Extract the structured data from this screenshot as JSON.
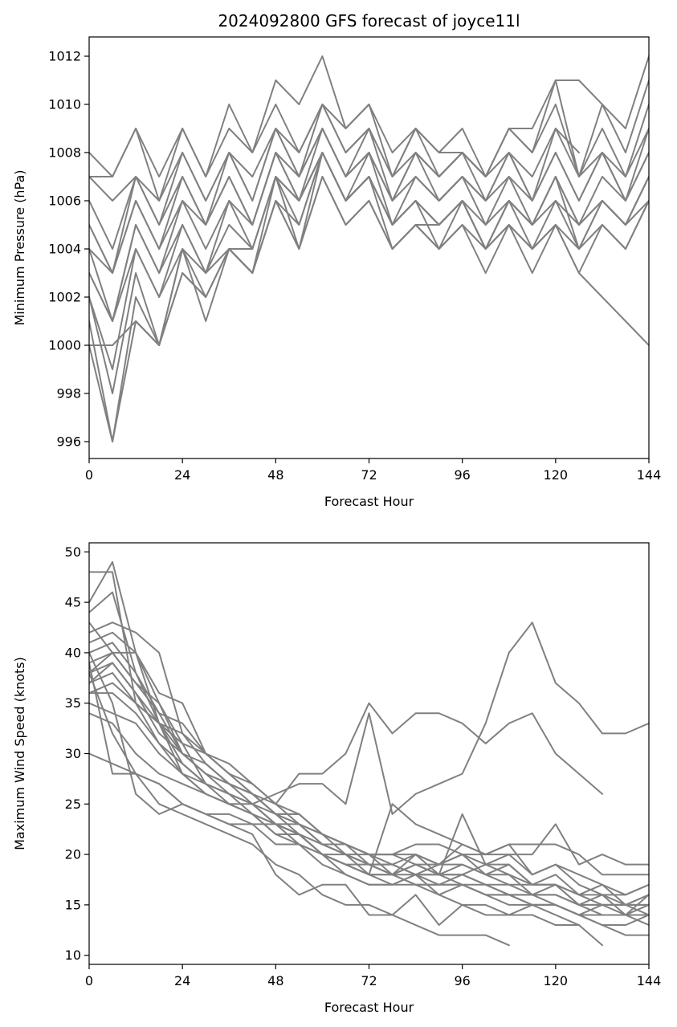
{
  "figure_title": "2024092800 GFS forecast of joyce11l",
  "line_color": "#808080",
  "chart_data": [
    {
      "type": "line",
      "title": "2024092800 GFS forecast of joyce11l",
      "xlabel": "Forecast Hour",
      "ylabel": "Minimum Pressure (hPa)",
      "xlim": [
        0,
        144
      ],
      "ylim": [
        995.3,
        1012.8
      ],
      "xticks": [
        0,
        24,
        48,
        72,
        96,
        120,
        144
      ],
      "yticks": [
        996,
        998,
        1000,
        1002,
        1004,
        1006,
        1008,
        1010,
        1012
      ],
      "grid": false,
      "x": [
        0,
        6,
        12,
        18,
        24,
        30,
        36,
        42,
        48,
        54,
        60,
        66,
        72,
        78,
        84,
        90,
        96,
        102,
        108,
        114,
        120,
        126,
        132,
        138,
        144
      ],
      "series": [
        {
          "values": [
            1008,
            1007,
            1009,
            1007,
            1009,
            1007,
            1010,
            1008,
            1011,
            1010,
            1012,
            1009,
            1010,
            1008,
            1009,
            1008,
            1008,
            1007,
            1009,
            1008,
            1011,
            1011,
            1010,
            1009,
            1012
          ]
        },
        {
          "values": [
            1007,
            1007,
            1009,
            1006,
            1009,
            1007,
            1009,
            1008,
            1010,
            1008,
            1010,
            1009,
            1010,
            1007,
            1009,
            1008,
            1009,
            1007,
            1009,
            1009,
            1011,
            1007,
            1010,
            1008,
            1011
          ]
        },
        {
          "values": [
            1007,
            1006,
            1007,
            1006,
            1008,
            1006,
            1008,
            1007,
            1009,
            1008,
            1010,
            1008,
            1009,
            1007,
            1009,
            1007,
            1008,
            1007,
            1009,
            1008,
            1010,
            1007,
            1009,
            1007,
            1010
          ]
        },
        {
          "values": [
            1006,
            1004,
            1007,
            1005,
            1008,
            1006,
            1008,
            1006,
            1009,
            1007,
            1010,
            1008,
            1009,
            1007,
            1008,
            1007,
            1008,
            1007,
            1008,
            1007,
            1009,
            1008,
            null,
            null,
            null
          ]
        },
        {
          "values": [
            1005,
            1003,
            1007,
            1005,
            1007,
            1005,
            1008,
            1006,
            1009,
            1007,
            1009,
            1007,
            1009,
            1006,
            1008,
            1007,
            1008,
            1006,
            1008,
            1006,
            1009,
            1007,
            1008,
            1007,
            1009
          ]
        },
        {
          "values": [
            1005,
            1003,
            1006,
            1004,
            1007,
            1005,
            1007,
            1005,
            1008,
            1007,
            1009,
            1007,
            1008,
            1006,
            1008,
            1006,
            1007,
            1006,
            1008,
            1006,
            1008,
            1006,
            1008,
            1006,
            1009
          ]
        },
        {
          "values": [
            1004,
            1003,
            1006,
            1004,
            1006,
            1005,
            1007,
            1005,
            1008,
            1006,
            1009,
            1007,
            1008,
            1006,
            1007,
            1006,
            1007,
            1006,
            1007,
            1006,
            1008,
            1006,
            1008,
            1006,
            1008
          ]
        },
        {
          "values": [
            1004,
            1001,
            1005,
            1003,
            1006,
            1004,
            1006,
            1005,
            1008,
            1006,
            1008,
            1006,
            1008,
            1005,
            1007,
            1006,
            1007,
            1005,
            1007,
            1005,
            1007,
            1005,
            1007,
            1006,
            1008
          ]
        },
        {
          "values": [
            1003,
            1001,
            1005,
            1003,
            1005,
            1003,
            1006,
            1004,
            1007,
            1006,
            1008,
            1006,
            1007,
            1005,
            1006,
            1005,
            1006,
            1005,
            1006,
            1005,
            1007,
            1005,
            1006,
            1005,
            1007
          ]
        },
        {
          "values": [
            1003,
            1001,
            1004,
            1002,
            1005,
            1003,
            1005,
            1004,
            1007,
            1006,
            1008,
            1006,
            1007,
            1005,
            1006,
            1005,
            1006,
            1004,
            1006,
            1005,
            1006,
            1004,
            1006,
            1005,
            1007
          ]
        },
        {
          "values": [
            1002,
            999,
            1004,
            1002,
            1004,
            1003,
            1004,
            1004,
            1007,
            1004,
            1008,
            1006,
            1007,
            1004,
            1005,
            1005,
            1006,
            1004,
            1005,
            1004,
            1005,
            1003,
            1005,
            1004,
            1006
          ]
        },
        {
          "values": [
            1002,
            998,
            1003,
            1000,
            1004,
            1001,
            1004,
            1003,
            1006,
            1004,
            1007,
            1005,
            1006,
            1004,
            1005,
            1004,
            1005,
            1003,
            1005,
            1003,
            1005,
            1003,
            1002,
            1001,
            1000
          ]
        },
        {
          "values": [
            1001,
            996,
            1002,
            1000,
            1003,
            1002,
            1004,
            1003,
            1006,
            1005,
            1008,
            1006,
            1007,
            1005,
            1006,
            1004,
            1006,
            1004,
            1006,
            1004,
            1006,
            1005,
            1006,
            1005,
            1006
          ]
        },
        {
          "values": [
            1000,
            1000,
            1001,
            1000,
            1004,
            1002,
            1004,
            1003,
            1007,
            1005,
            1008,
            1006,
            1007,
            1005,
            1006,
            1005,
            1006,
            1004,
            1006,
            1005,
            1007,
            1004,
            1006,
            1005,
            1007
          ]
        },
        {
          "values": [
            1000,
            996,
            1001,
            1000,
            1003,
            1002,
            1004,
            1003,
            1006,
            1004,
            1007,
            1005,
            1006,
            1004,
            1005,
            1004,
            1005,
            1004,
            1005,
            1004,
            1005,
            1004,
            1005,
            1004,
            1006
          ]
        }
      ]
    },
    {
      "type": "line",
      "title": "",
      "xlabel": "Forecast Hour",
      "ylabel": "Maximum Wind Speed (knots)",
      "xlim": [
        0,
        144
      ],
      "ylim": [
        9.1,
        50.9
      ],
      "xticks": [
        0,
        24,
        48,
        72,
        96,
        120,
        144
      ],
      "yticks": [
        10,
        15,
        20,
        25,
        30,
        35,
        40,
        45,
        50
      ],
      "grid": false,
      "x": [
        0,
        6,
        12,
        18,
        24,
        30,
        36,
        42,
        48,
        54,
        60,
        66,
        72,
        78,
        84,
        90,
        96,
        102,
        108,
        114,
        120,
        126,
        132,
        138,
        144
      ],
      "series": [
        {
          "values": [
            48,
            48,
            35,
            33,
            31,
            30,
            28,
            26,
            25,
            28,
            28,
            30,
            35,
            32,
            34,
            34,
            33,
            31,
            33,
            34,
            30,
            28,
            26,
            null,
            null
          ]
        },
        {
          "values": [
            44,
            46,
            38,
            33,
            28,
            26,
            25,
            25,
            26,
            27,
            27,
            25,
            34,
            24,
            26,
            27,
            28,
            33,
            40,
            43,
            37,
            35,
            32,
            32,
            33
          ]
        },
        {
          "values": [
            45,
            49,
            40,
            33,
            30,
            28,
            27,
            26,
            24,
            22,
            21,
            20,
            18,
            25,
            23,
            22,
            21,
            20,
            21,
            21,
            21,
            20,
            18,
            18,
            18
          ]
        },
        {
          "values": [
            43,
            40,
            40,
            35,
            31,
            27,
            26,
            25,
            23,
            22,
            20,
            18,
            17,
            17,
            18,
            18,
            17,
            17,
            16,
            16,
            15,
            14,
            15,
            14,
            14
          ]
        },
        {
          "values": [
            42,
            43,
            42,
            40,
            32,
            30,
            28,
            26,
            24,
            23,
            21,
            20,
            19,
            18,
            19,
            18,
            18,
            19,
            18,
            17,
            17,
            15,
            15,
            15,
            16
          ]
        },
        {
          "values": [
            41,
            42,
            40,
            36,
            35,
            30,
            29,
            27,
            25,
            24,
            22,
            21,
            20,
            20,
            21,
            21,
            20,
            19,
            19,
            17,
            17,
            16,
            16,
            15,
            15
          ]
        },
        {
          "values": [
            40,
            41,
            38,
            34,
            33,
            30,
            28,
            27,
            25,
            23,
            22,
            21,
            20,
            20,
            19,
            19,
            20,
            20,
            20,
            18,
            19,
            18,
            17,
            16,
            17
          ]
        },
        {
          "values": [
            39,
            40,
            37,
            35,
            30,
            29,
            27,
            26,
            24,
            24,
            22,
            21,
            20,
            19,
            20,
            19,
            21,
            20,
            21,
            18,
            19,
            17,
            16,
            16,
            17
          ]
        },
        {
          "values": [
            38,
            39,
            36,
            33,
            32,
            29,
            27,
            26,
            24,
            24,
            22,
            21,
            20,
            20,
            20,
            19,
            20,
            18,
            19,
            17,
            18,
            16,
            17,
            15,
            16
          ]
        },
        {
          "values": [
            38,
            40,
            37,
            34,
            30,
            28,
            27,
            25,
            24,
            23,
            22,
            20,
            19,
            19,
            18,
            19,
            19,
            18,
            17,
            17,
            17,
            16,
            15,
            15,
            15
          ]
        },
        {
          "values": [
            37,
            39,
            36,
            32,
            30,
            28,
            26,
            25,
            23,
            23,
            21,
            20,
            20,
            18,
            19,
            18,
            19,
            18,
            18,
            16,
            17,
            15,
            16,
            14,
            16
          ]
        },
        {
          "values": [
            37,
            38,
            35,
            33,
            29,
            27,
            26,
            25,
            23,
            22,
            21,
            21,
            19,
            19,
            18,
            18,
            18,
            17,
            17,
            16,
            16,
            15,
            15,
            15,
            14
          ]
        },
        {
          "values": [
            36,
            37,
            35,
            31,
            29,
            27,
            25,
            24,
            23,
            22,
            20,
            20,
            19,
            18,
            18,
            17,
            18,
            17,
            16,
            16,
            16,
            15,
            14,
            14,
            15
          ]
        },
        {
          "values": [
            36,
            36,
            34,
            31,
            28,
            27,
            26,
            24,
            23,
            22,
            20,
            19,
            18,
            18,
            17,
            17,
            17,
            16,
            16,
            15,
            15,
            14,
            14,
            14,
            13
          ]
        },
        {
          "values": [
            35,
            34,
            33,
            30,
            28,
            26,
            25,
            24,
            22,
            21,
            20,
            19,
            18,
            17,
            17,
            16,
            17,
            16,
            15,
            15,
            15,
            14,
            13,
            13,
            14
          ]
        },
        {
          "values": [
            34,
            33,
            30,
            28,
            27,
            26,
            25,
            24,
            22,
            22,
            20,
            19,
            18,
            18,
            17,
            17,
            17,
            16,
            16,
            15,
            15,
            14,
            13,
            12,
            12
          ]
        },
        {
          "values": [
            30,
            29,
            28,
            27,
            25,
            24,
            24,
            23,
            23,
            21,
            19,
            18,
            17,
            17,
            18,
            16,
            15,
            15,
            14,
            14,
            13,
            13,
            null,
            null,
            null
          ]
        },
        {
          "values": [
            38,
            32,
            28,
            25,
            24,
            23,
            22,
            21,
            19,
            18,
            16,
            15,
            15,
            14,
            13,
            12,
            12,
            12,
            11,
            null,
            null,
            null,
            null,
            null,
            null
          ]
        },
        {
          "values": [
            39,
            28,
            28,
            27,
            25,
            24,
            23,
            22,
            18,
            16,
            17,
            17,
            14,
            14,
            16,
            13,
            15,
            14,
            14,
            15,
            14,
            13,
            11,
            null,
            null
          ]
        },
        {
          "values": [
            40,
            35,
            26,
            24,
            25,
            24,
            23,
            23,
            21,
            21,
            20,
            19,
            19,
            18,
            20,
            18,
            24,
            19,
            20,
            20,
            23,
            19,
            20,
            19,
            19
          ]
        }
      ]
    }
  ]
}
